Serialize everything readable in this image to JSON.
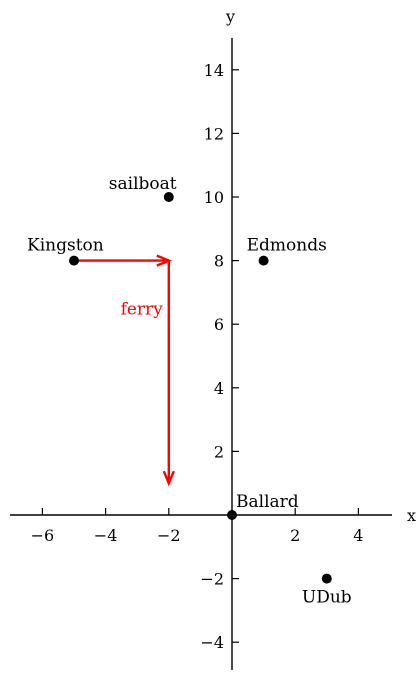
{
  "chart_data": {
    "type": "scatter",
    "xlabel": "x",
    "ylabel": "y",
    "xlim": [
      -7.1,
      4.9
    ],
    "ylim": [
      -4.9,
      15
    ],
    "x_ticks": [
      -6,
      -4,
      -2,
      2,
      4
    ],
    "y_ticks": [
      -4,
      -2,
      2,
      4,
      6,
      8,
      10,
      12,
      14
    ],
    "x_tick_labels": [
      "−6",
      "−4",
      "−2",
      "2",
      "4"
    ],
    "y_tick_labels": [
      "−4",
      "−2",
      "2",
      "4",
      "6",
      "8",
      "10",
      "12",
      "14"
    ],
    "grid": false,
    "points": [
      {
        "label": "Kingston",
        "x": -5,
        "y": 8
      },
      {
        "label": "sailboat",
        "x": -2,
        "y": 10
      },
      {
        "label": "Edmonds",
        "x": 1,
        "y": 8
      },
      {
        "label": "Ballard",
        "x": 0,
        "y": 0
      },
      {
        "label": "UDub",
        "x": 3,
        "y": -2
      }
    ],
    "arrows": [
      {
        "from": [
          -5,
          8
        ],
        "to": [
          -2,
          8
        ]
      },
      {
        "from": [
          -2,
          8
        ],
        "to": [
          -2,
          1
        ]
      }
    ],
    "annotations": [
      {
        "text": "ferry",
        "x": -2,
        "y": 6.5
      }
    ],
    "colors": {
      "axis": "#000000",
      "points": "#000000",
      "arrows": "#ff0000",
      "annotation": "#ff0000"
    }
  }
}
